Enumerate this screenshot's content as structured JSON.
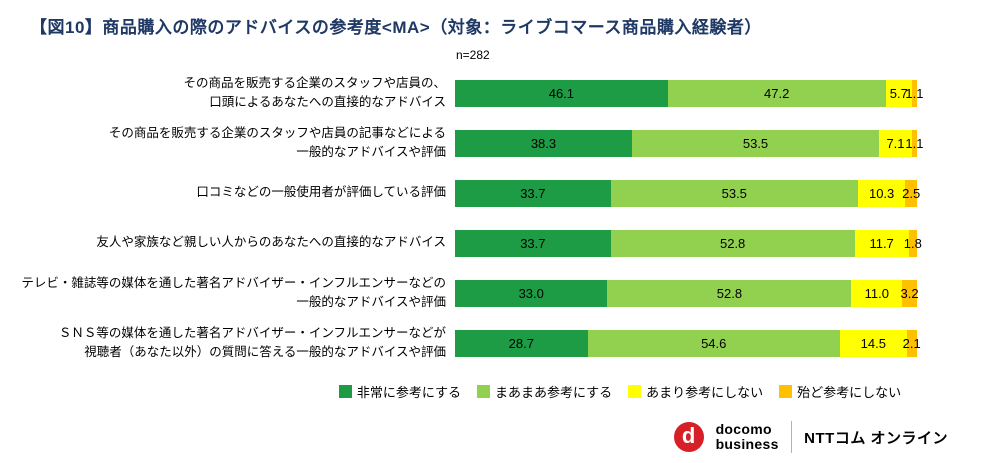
{
  "title": "【図10】商品購入の際のアドバイスの参考度<MA>（対象：ライブコマース商品購入経験者）",
  "chart_data": {
    "type": "bar",
    "stacked": true,
    "orientation": "horizontal",
    "units": "percent",
    "xlim": [
      0,
      100
    ],
    "grid": false,
    "n_label": "n=282",
    "legend_position": "bottom",
    "series": [
      {
        "key": "very",
        "name": "非常に参考にする",
        "color": "#1e9b45"
      },
      {
        "key": "somewhat",
        "name": "まあまあ参考にする",
        "color": "#92d050"
      },
      {
        "key": "not-much",
        "name": "あまり参考にしない",
        "color": "#ffff00"
      },
      {
        "key": "rarely",
        "name": "殆ど参考にしない",
        "color": "#ffc000"
      }
    ],
    "rows": [
      {
        "label_lines": [
          "その商品を販売する企業のスタッフや店員の、",
          "口頭によるあなたへの直接的なアドバイス"
        ],
        "values": [
          46.1,
          47.2,
          5.7,
          1.1
        ]
      },
      {
        "label_lines": [
          "その商品を販売する企業のスタッフや店員の記事などによる",
          "一般的なアドバイスや評価"
        ],
        "values": [
          38.3,
          53.5,
          7.1,
          1.1
        ]
      },
      {
        "label_lines": [
          "口コミなどの一般使用者が評価している評価"
        ],
        "values": [
          33.7,
          53.5,
          10.3,
          2.5
        ]
      },
      {
        "label_lines": [
          "友人や家族など親しい人からのあなたへの直接的なアドバイス"
        ],
        "values": [
          33.7,
          52.8,
          11.7,
          1.8
        ]
      },
      {
        "label_lines": [
          "テレビ・雑誌等の媒体を通した著名アドバイザー・インフルエンサーなどの",
          "一般的なアドバイスや評価"
        ],
        "values": [
          33.0,
          52.8,
          11.0,
          3.2
        ]
      },
      {
        "label_lines": [
          "ＳＮＳ等の媒体を通した著名アドバイザー・インフルエンサーなどが",
          "視聴者（あなた以外）の質問に答える一般的なアドバイスや評価"
        ],
        "values": [
          28.7,
          54.6,
          14.5,
          2.1
        ]
      }
    ]
  },
  "footer": {
    "logo_letter": "d",
    "logo_color": "#d61f26",
    "brand_line1": "docomo",
    "brand_line2": "business",
    "brand_right": "NTTコム オンライン"
  }
}
